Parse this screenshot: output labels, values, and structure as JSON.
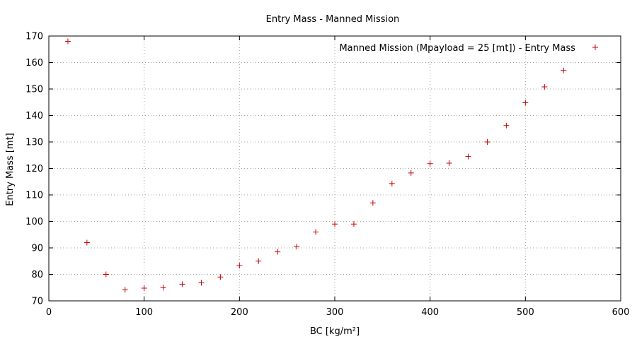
{
  "chart_data": {
    "type": "scatter",
    "title": "Entry Mass - Manned Mission",
    "xlabel": "BC [kg/m²]",
    "ylabel": "Entry Mass [mt]",
    "xlim": [
      0,
      600
    ],
    "ylim": [
      70,
      170
    ],
    "xticks": [
      0,
      100,
      200,
      300,
      400,
      500,
      600
    ],
    "yticks": [
      70,
      80,
      90,
      100,
      110,
      120,
      130,
      140,
      150,
      160,
      170
    ],
    "grid": true,
    "legend_position": "top-right",
    "marker": "plus",
    "color": "#cc0000",
    "series": [
      {
        "name": "Manned Mission (Mpayload = 25 [mt])  - Entry Mass",
        "x": [
          20,
          40,
          60,
          80,
          100,
          120,
          140,
          160,
          180,
          200,
          220,
          240,
          260,
          280,
          300,
          320,
          340,
          360,
          380,
          400,
          420,
          440,
          460,
          480,
          500,
          520,
          540
        ],
        "y": [
          168,
          92,
          80,
          74.2,
          74.8,
          75,
          76.3,
          76.8,
          79,
          83.3,
          85,
          88.5,
          90.5,
          96,
          99,
          99,
          107,
          114.3,
          118.3,
          121.8,
          122,
          124.5,
          130,
          136.2,
          144.8,
          150.8,
          157
        ]
      }
    ]
  }
}
